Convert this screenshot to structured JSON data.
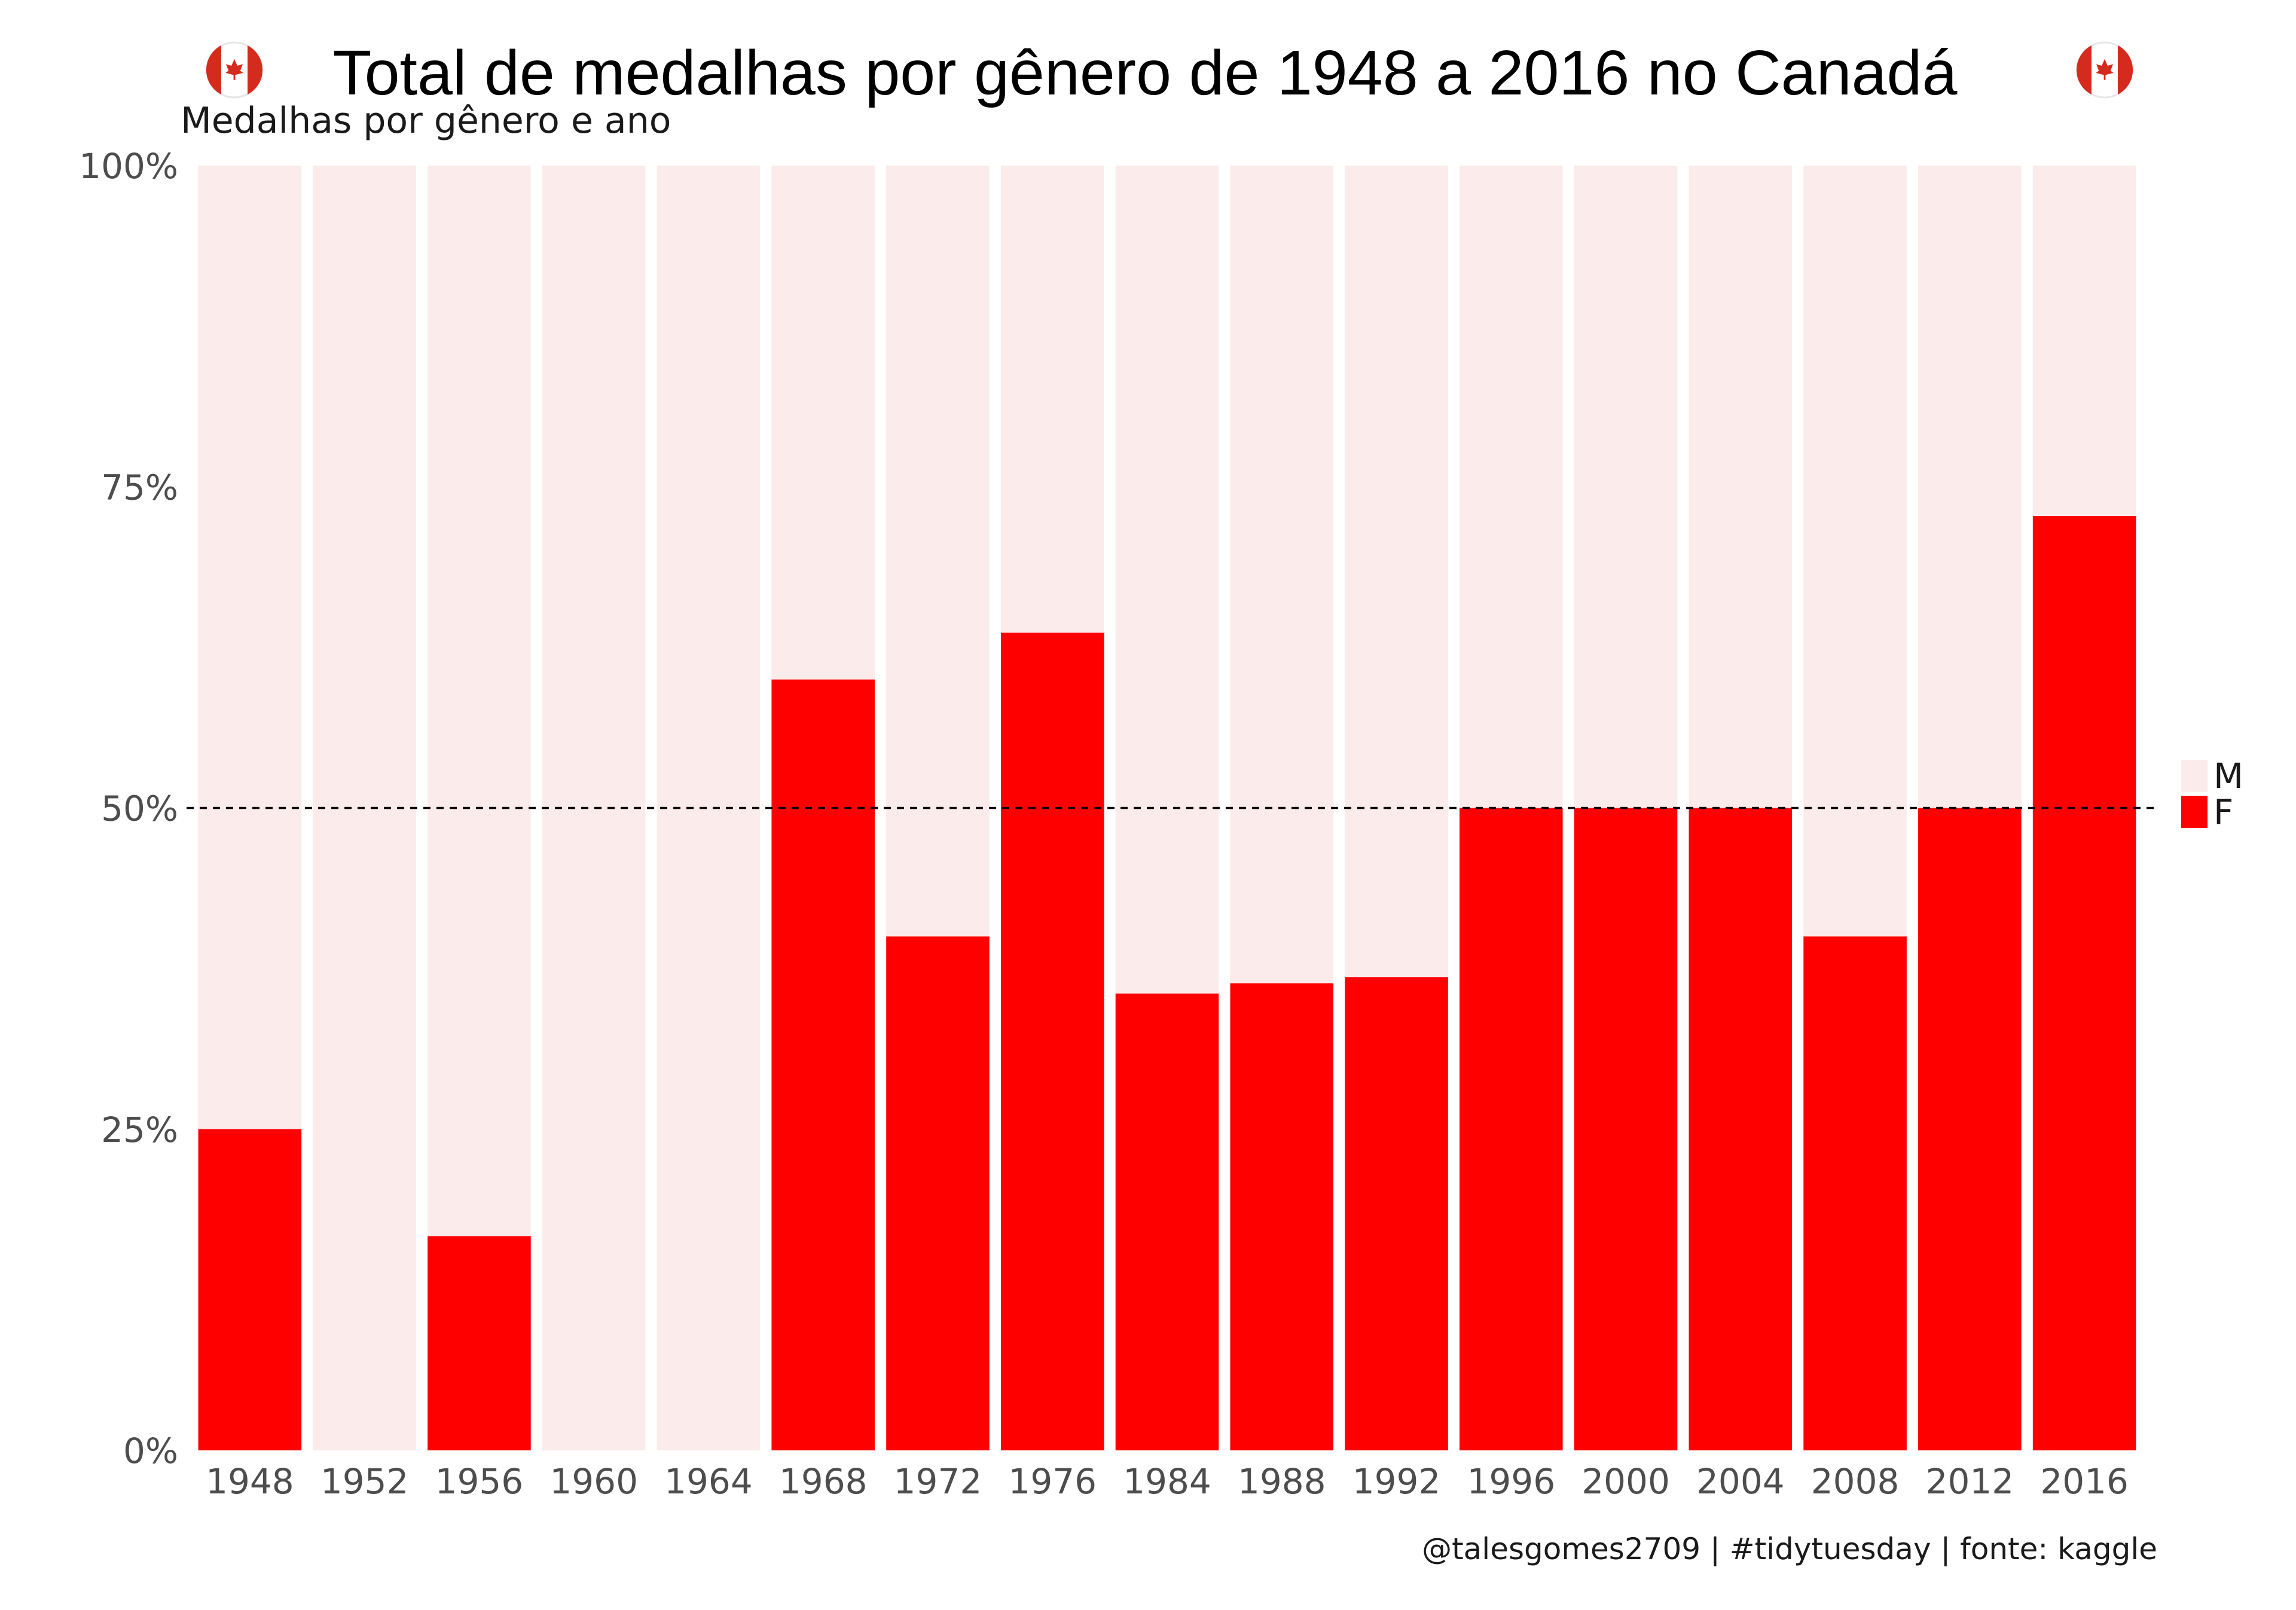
{
  "title": "Total de medalhas por gênero de 1948 a 2016 no Canadá",
  "title_icon": "canada-flag-icon",
  "subtitle": "Medalhas por gênero e ano",
  "caption": "@talesgomes2709 | #tidytuesday | fonte: kaggle",
  "colors": {
    "F": "#ff0000",
    "M": "#fcebeb",
    "reference_line": "#000000",
    "flag_red": "#d52b1e"
  },
  "chart_data": {
    "type": "bar",
    "stacked": "percent",
    "categories": [
      "1948",
      "1952",
      "1956",
      "1960",
      "1964",
      "1968",
      "1972",
      "1976",
      "1984",
      "1988",
      "1992",
      "1996",
      "2000",
      "2004",
      "2008",
      "2012",
      "2016"
    ],
    "series": [
      {
        "name": "F",
        "values": [
          0.25,
          0,
          0.1667,
          0,
          0,
          0.6,
          0.4,
          0.6364,
          0.3556,
          0.3636,
          0.3684,
          0.5,
          0.5,
          0.5,
          0.4,
          0.5,
          0.7273
        ]
      },
      {
        "name": "M",
        "values": [
          0.75,
          1,
          0.8333,
          1,
          1,
          0.4,
          0.6,
          0.3636,
          0.6444,
          0.6364,
          0.6316,
          0.5,
          0.5,
          0.5,
          0.6,
          0.5,
          0.2727
        ]
      }
    ],
    "yticks": [
      "0%",
      "25%",
      "50%",
      "75%",
      "100%"
    ],
    "ylim": [
      0,
      1
    ],
    "reference_line": 0.5,
    "legend_items": [
      "M",
      "F"
    ],
    "legend_position": "right",
    "grid": false
  }
}
